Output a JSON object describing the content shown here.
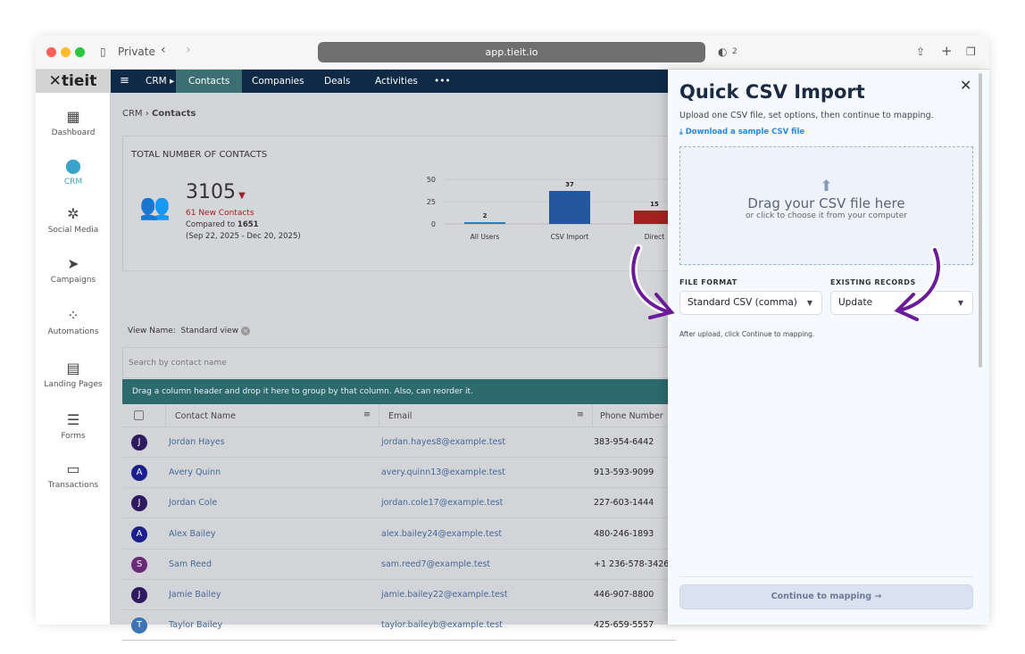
{
  "browser": {
    "mode": "Private",
    "url": "app.tieit.io",
    "shield_count": "2"
  },
  "logo": "tieit",
  "sidebar": {
    "items": [
      {
        "label": "Dashboard",
        "icon": "dashboard-icon"
      },
      {
        "label": "CRM",
        "icon": "crm-icon",
        "active": true
      },
      {
        "label": "Social Media",
        "icon": "social-icon"
      },
      {
        "label": "Campaigns",
        "icon": "send-icon"
      },
      {
        "label": "Automations",
        "icon": "automation-icon"
      },
      {
        "label": "Landing Pages",
        "icon": "landing-icon"
      },
      {
        "label": "Forms",
        "icon": "forms-icon"
      },
      {
        "label": "Transactions",
        "icon": "card-icon"
      }
    ]
  },
  "nav": {
    "crm": "CRM",
    "tabs": [
      "Contacts",
      "Companies",
      "Deals",
      "Activities"
    ],
    "more": "•••"
  },
  "breadcrumb": {
    "root": "CRM",
    "sep": "›",
    "current": "Contacts"
  },
  "stats": {
    "title": "TOTAL NUMBER OF CONTACTS",
    "total": "3105",
    "new": "61 New Contacts",
    "compared_label": "Compared to",
    "compared_value": "1651",
    "range": "(Sep 22, 2025 - Dec 20, 2025)"
  },
  "chart_data": {
    "type": "bar",
    "categories": [
      "All Users",
      "CSV Import",
      "Direct"
    ],
    "values": [
      2,
      37,
      15
    ],
    "colors": [
      "#2a7fb0",
      "#24589c",
      "#a3221f"
    ],
    "ylim": [
      0,
      50
    ],
    "yticks": [
      "0",
      "25",
      "50"
    ]
  },
  "view": {
    "label": "View Name:",
    "value": "Standard view"
  },
  "search": {
    "placeholder": "Search by contact name"
  },
  "group_hint": "Drag a column header and drop it here to group by that column. Also, can reorder it.",
  "table": {
    "columns": [
      "Contact Name",
      "Email",
      "Phone Number"
    ],
    "rows": [
      {
        "initial": "J",
        "color": "#2e1a5e",
        "name": "Jordan Hayes",
        "email": "jordan.hayes8@example.test",
        "phone": "383-954-6442"
      },
      {
        "initial": "A",
        "color": "#1a1f8c",
        "name": "Avery Quinn",
        "email": "avery.quinn13@example.test",
        "phone": "913-593-9099"
      },
      {
        "initial": "J",
        "color": "#2e1a5e",
        "name": "Jordan Cole",
        "email": "jordan.cole17@example.test",
        "phone": "227-603-1444"
      },
      {
        "initial": "A",
        "color": "#1a1f8c",
        "name": "Alex Bailey",
        "email": "alex.bailey24@example.test",
        "phone": "480-246-1893"
      },
      {
        "initial": "S",
        "color": "#6a2a78",
        "name": "Sam Reed",
        "email": "sam.reed7@example.test",
        "phone": "+1 236-578-3426"
      },
      {
        "initial": "J",
        "color": "#2e1a5e",
        "name": "Jamie Bailey",
        "email": "jamie.bailey22@example.test",
        "phone": "446-907-8800"
      },
      {
        "initial": "T",
        "color": "#3c74b4",
        "name": "Taylor Bailey",
        "email": "taylor.baileyb@example.test",
        "phone": "425-659-5557"
      }
    ]
  },
  "panel": {
    "title": "Quick CSV Import",
    "subtitle": "Upload one CSV file, set options, then continue to mapping.",
    "download": "Download a sample CSV file",
    "drop_title": "Drag your CSV file here",
    "drop_sub": "or click to choose it from your computer",
    "format_label": "FILE FORMAT",
    "format_value": "Standard CSV (comma)",
    "records_label": "EXISTING RECORDS",
    "records_value": "Update",
    "hint": "After upload, click Continue to mapping.",
    "continue": "Continue to mapping",
    "arrow_color": "#6a1b9a"
  }
}
